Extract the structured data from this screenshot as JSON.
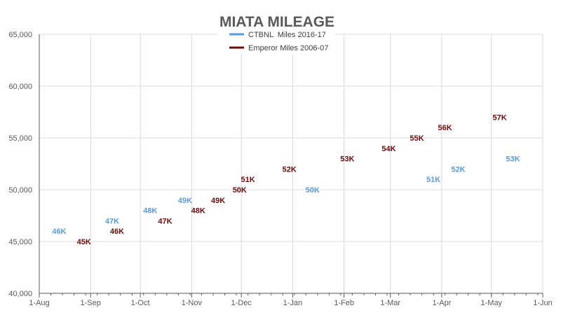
{
  "chart_data": {
    "type": "scatter",
    "title": "MIATA MILEAGE",
    "xlabel": "",
    "ylabel": "",
    "ylim": [
      40000,
      65000
    ],
    "y_ticks": [
      "40,000",
      "45,000",
      "50,000",
      "55,000",
      "60,000",
      "65,000"
    ],
    "y_tick_values": [
      40000,
      45000,
      50000,
      55000,
      60000,
      65000
    ],
    "x_ticks": [
      "1-Aug",
      "1-Sep",
      "1-Oct",
      "1-Nov",
      "1-Dec",
      "1-Jan",
      "1-Feb",
      "1-Mar",
      "1-Apr",
      "1-May",
      "1-Jun"
    ],
    "grid": true,
    "legend_position": "top",
    "series": [
      {
        "name": "CTBNL  Miles 2016-17",
        "color": "#5b9bd5",
        "points": [
          {
            "x": "13-Aug",
            "y": 46000,
            "label": "46K"
          },
          {
            "x": "14-Sep",
            "y": 47000,
            "label": "47K"
          },
          {
            "x": "7-Oct",
            "y": 48000,
            "label": "48K"
          },
          {
            "x": "28-Oct",
            "y": 49000,
            "label": "49K"
          },
          {
            "x": "13-Jan",
            "y": 50000,
            "label": "50K"
          },
          {
            "x": "27-Mar",
            "y": 51000,
            "label": "51K"
          },
          {
            "x": "11-Apr",
            "y": 52000,
            "label": "52K"
          },
          {
            "x": "14-May",
            "y": 53000,
            "label": "53K"
          }
        ]
      },
      {
        "name": "Emperor Miles 2006-07",
        "color": "#6b0c0c",
        "points": [
          {
            "x": "28-Aug",
            "y": 45000,
            "label": "45K"
          },
          {
            "x": "17-Sep",
            "y": 46000,
            "label": "46K"
          },
          {
            "x": "16-Oct",
            "y": 47000,
            "label": "47K"
          },
          {
            "x": "5-Nov",
            "y": 48000,
            "label": "48K"
          },
          {
            "x": "17-Nov",
            "y": 49000,
            "label": "49K"
          },
          {
            "x": "30-Nov",
            "y": 50000,
            "label": "50K"
          },
          {
            "x": "5-Dec",
            "y": 51000,
            "label": "51K"
          },
          {
            "x": "30-Dec",
            "y": 52000,
            "label": "52K"
          },
          {
            "x": "3-Feb",
            "y": 53000,
            "label": "53K"
          },
          {
            "x": "28-Feb",
            "y": 54000,
            "label": "54K"
          },
          {
            "x": "17-Mar",
            "y": 55000,
            "label": "55K"
          },
          {
            "x": "3-Apr",
            "y": 56000,
            "label": "56K"
          },
          {
            "x": "6-May",
            "y": 57000,
            "label": "57K"
          }
        ]
      }
    ]
  }
}
